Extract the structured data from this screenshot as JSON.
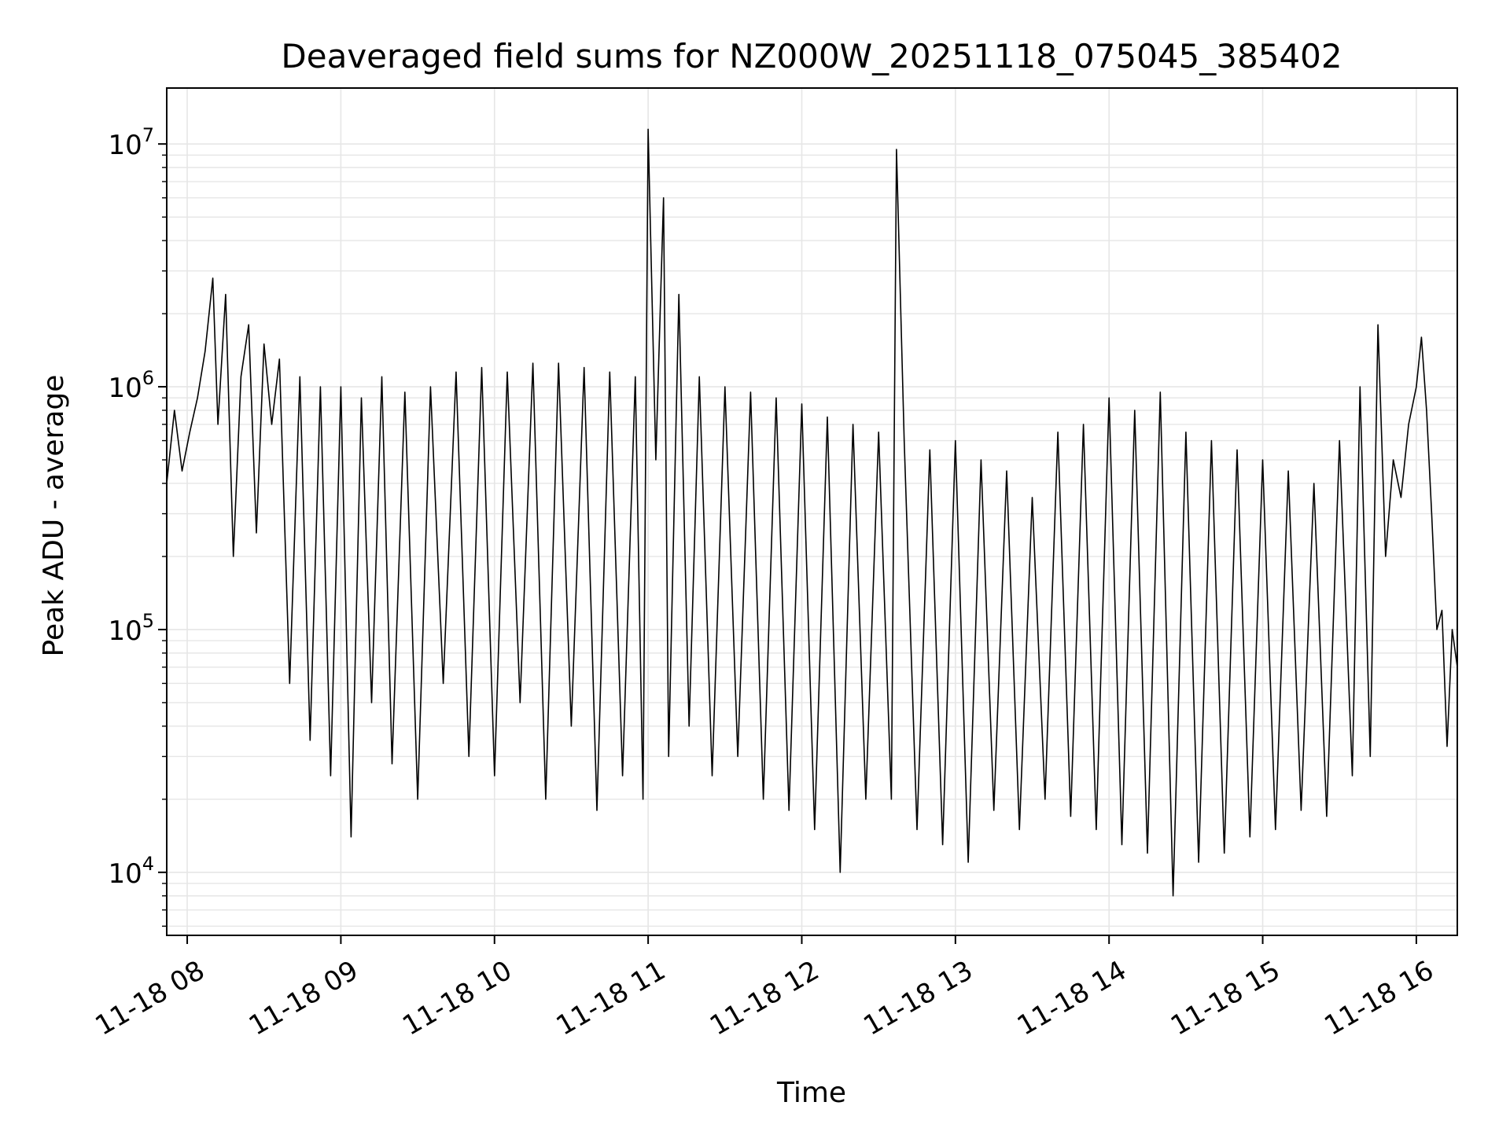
{
  "chart_data": {
    "type": "line",
    "title": "Deaveraged field sums for NZ000W_20251118_075045_385402",
    "xlabel": "Time",
    "ylabel": "Peak ADU - average",
    "y_scale": "log",
    "ylim": [
      5500,
      17000000
    ],
    "xlim": [
      "2025-11-18 07:52",
      "2025-11-18 16:16"
    ],
    "grid": true,
    "line_color": "#000000",
    "x_ticks": [
      {
        "value": "2025-11-18 08:00",
        "label": "11-18 08"
      },
      {
        "value": "2025-11-18 09:00",
        "label": "11-18 09"
      },
      {
        "value": "2025-11-18 10:00",
        "label": "11-18 10"
      },
      {
        "value": "2025-11-18 11:00",
        "label": "11-18 11"
      },
      {
        "value": "2025-11-18 12:00",
        "label": "11-18 12"
      },
      {
        "value": "2025-11-18 13:00",
        "label": "11-18 13"
      },
      {
        "value": "2025-11-18 14:00",
        "label": "11-18 14"
      },
      {
        "value": "2025-11-18 15:00",
        "label": "11-18 15"
      },
      {
        "value": "2025-11-18 16:00",
        "label": "11-18 16"
      }
    ],
    "y_ticks": [
      {
        "value": 10000,
        "base": "10",
        "exp": "4"
      },
      {
        "value": 100000,
        "base": "10",
        "exp": "5"
      },
      {
        "value": 1000000,
        "base": "10",
        "exp": "6"
      },
      {
        "value": 10000000,
        "base": "10",
        "exp": "7"
      }
    ],
    "series": [
      {
        "x": [
          "2025-11-18 07:52",
          "2025-11-18 07:55",
          "2025-11-18 07:58",
          "2025-11-18 08:01",
          "2025-11-18 08:04",
          "2025-11-18 08:07",
          "2025-11-18 08:10",
          "2025-11-18 08:12",
          "2025-11-18 08:15",
          "2025-11-18 08:18",
          "2025-11-18 08:21",
          "2025-11-18 08:24",
          "2025-11-18 08:27",
          "2025-11-18 08:30",
          "2025-11-18 08:33",
          "2025-11-18 08:36",
          "2025-11-18 08:40",
          "2025-11-18 08:44",
          "2025-11-18 08:48",
          "2025-11-18 08:52",
          "2025-11-18 08:56",
          "2025-11-18 09:00",
          "2025-11-18 09:04",
          "2025-11-18 09:08",
          "2025-11-18 09:12",
          "2025-11-18 09:16",
          "2025-11-18 09:20",
          "2025-11-18 09:25",
          "2025-11-18 09:30",
          "2025-11-18 09:35",
          "2025-11-18 09:40",
          "2025-11-18 09:45",
          "2025-11-18 09:50",
          "2025-11-18 09:55",
          "2025-11-18 10:00",
          "2025-11-18 10:05",
          "2025-11-18 10:10",
          "2025-11-18 10:15",
          "2025-11-18 10:20",
          "2025-11-18 10:25",
          "2025-11-18 10:30",
          "2025-11-18 10:35",
          "2025-11-18 10:40",
          "2025-11-18 10:45",
          "2025-11-18 10:50",
          "2025-11-18 10:55",
          "2025-11-18 10:58",
          "2025-11-18 11:00",
          "2025-11-18 11:03",
          "2025-11-18 11:06",
          "2025-11-18 11:08",
          "2025-11-18 11:12",
          "2025-11-18 11:16",
          "2025-11-18 11:20",
          "2025-11-18 11:25",
          "2025-11-18 11:30",
          "2025-11-18 11:35",
          "2025-11-18 11:40",
          "2025-11-18 11:45",
          "2025-11-18 11:50",
          "2025-11-18 11:55",
          "2025-11-18 12:00",
          "2025-11-18 12:05",
          "2025-11-18 12:10",
          "2025-11-18 12:15",
          "2025-11-18 12:20",
          "2025-11-18 12:25",
          "2025-11-18 12:30",
          "2025-11-18 12:35",
          "2025-11-18 12:37",
          "2025-11-18 12:40",
          "2025-11-18 12:45",
          "2025-11-18 12:50",
          "2025-11-18 12:55",
          "2025-11-18 13:00",
          "2025-11-18 13:05",
          "2025-11-18 13:10",
          "2025-11-18 13:15",
          "2025-11-18 13:20",
          "2025-11-18 13:25",
          "2025-11-18 13:30",
          "2025-11-18 13:35",
          "2025-11-18 13:40",
          "2025-11-18 13:45",
          "2025-11-18 13:50",
          "2025-11-18 13:55",
          "2025-11-18 14:00",
          "2025-11-18 14:05",
          "2025-11-18 14:10",
          "2025-11-18 14:15",
          "2025-11-18 14:20",
          "2025-11-18 14:25",
          "2025-11-18 14:30",
          "2025-11-18 14:35",
          "2025-11-18 14:40",
          "2025-11-18 14:45",
          "2025-11-18 14:50",
          "2025-11-18 14:55",
          "2025-11-18 15:00",
          "2025-11-18 15:05",
          "2025-11-18 15:10",
          "2025-11-18 15:15",
          "2025-11-18 15:20",
          "2025-11-18 15:25",
          "2025-11-18 15:30",
          "2025-11-18 15:35",
          "2025-11-18 15:38",
          "2025-11-18 15:42",
          "2025-11-18 15:45",
          "2025-11-18 15:48",
          "2025-11-18 15:51",
          "2025-11-18 15:54",
          "2025-11-18 15:57",
          "2025-11-18 16:00",
          "2025-11-18 16:02",
          "2025-11-18 16:04",
          "2025-11-18 16:06",
          "2025-11-18 16:08",
          "2025-11-18 16:10",
          "2025-11-18 16:12",
          "2025-11-18 16:14",
          "2025-11-18 16:16"
        ],
        "y": [
          400000,
          800000,
          450000,
          650000,
          900000,
          1400000,
          2800000,
          700000,
          2400000,
          200000,
          1100000,
          1800000,
          250000,
          1500000,
          700000,
          1300000,
          60000,
          1100000,
          35000,
          1000000,
          25000,
          1000000,
          14000,
          900000,
          50000,
          1100000,
          28000,
          950000,
          20000,
          1000000,
          60000,
          1150000,
          30000,
          1200000,
          25000,
          1150000,
          50000,
          1250000,
          20000,
          1250000,
          40000,
          1200000,
          18000,
          1150000,
          25000,
          1100000,
          20000,
          11500000,
          500000,
          6000000,
          30000,
          2400000,
          40000,
          1100000,
          25000,
          1000000,
          30000,
          950000,
          20000,
          900000,
          18000,
          850000,
          15000,
          750000,
          10000,
          700000,
          20000,
          650000,
          20000,
          9500000,
          600000,
          15000,
          550000,
          13000,
          600000,
          11000,
          500000,
          18000,
          450000,
          15000,
          350000,
          20000,
          650000,
          17000,
          700000,
          15000,
          900000,
          13000,
          800000,
          12000,
          950000,
          8000,
          650000,
          11000,
          600000,
          12000,
          550000,
          14000,
          500000,
          15000,
          450000,
          18000,
          400000,
          17000,
          600000,
          25000,
          1000000,
          30000,
          1800000,
          200000,
          500000,
          350000,
          700000,
          1000000,
          1600000,
          800000,
          300000,
          100000,
          120000,
          33000,
          100000,
          70000
        ]
      }
    ]
  }
}
